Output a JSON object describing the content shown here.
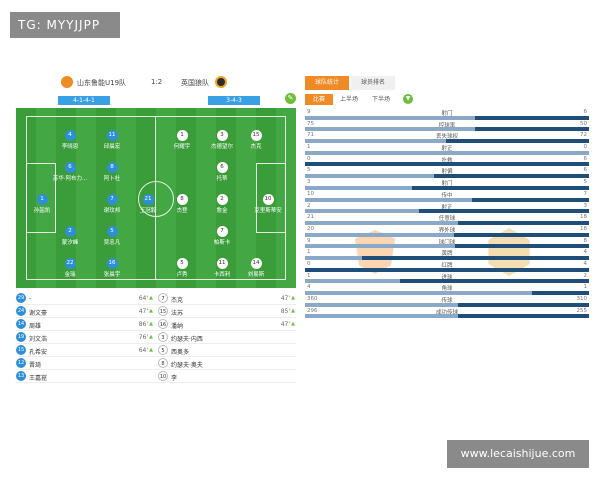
{
  "watermark_top": "TG: MYYJJPP",
  "watermark_bottom": "www.lecaishijue.com",
  "match": {
    "home": "山东鲁能U19队",
    "score": "1:2",
    "away": "英国狼队"
  },
  "formations": {
    "home": "4-1-4-1",
    "away": "3-4-3"
  },
  "icons": {
    "edit": "pencil-icon",
    "filter": "filter-icon"
  },
  "colors": {
    "accent": "#f08a24",
    "home": "#2f8fd6",
    "away_bar": "#1f4e79",
    "pitch": "#3a9d3a"
  },
  "players_home": [
    {
      "num": "1",
      "name": "孙韶凯"
    },
    {
      "num": "4",
      "name": "李晓恩"
    },
    {
      "num": "6",
      "name": "苏华·阿布力..."
    },
    {
      "num": "2",
      "name": "蒙汐峰"
    },
    {
      "num": "22",
      "name": "金瑞"
    },
    {
      "num": "11",
      "name": "邱晨宏"
    },
    {
      "num": "8",
      "name": "阿卜杜"
    },
    {
      "num": "7",
      "name": "谢玟邦"
    },
    {
      "num": "5",
      "name": "贾忠凡"
    },
    {
      "num": "16",
      "name": "张晨宇"
    },
    {
      "num": "21",
      "name": "王冠毅"
    }
  ],
  "players_away": [
    {
      "num": "1",
      "name": "何耀宇"
    },
    {
      "num": "3",
      "name": "杰德望尔"
    },
    {
      "num": "15",
      "name": "杰克"
    },
    {
      "num": "6",
      "name": "托蒂"
    },
    {
      "num": "8",
      "name": "杰登"
    },
    {
      "num": "10",
      "name": "克里斯蒂安"
    },
    {
      "num": "2",
      "name": "詹金"
    },
    {
      "num": "7",
      "name": "帕斯卡"
    },
    {
      "num": "5",
      "name": "卢秀"
    },
    {
      "num": "11",
      "name": "卡西利"
    },
    {
      "num": "14",
      "name": "刘易斯"
    }
  ],
  "subs_home": [
    {
      "num": "29",
      "name": "-",
      "min": "64'"
    },
    {
      "num": "24",
      "name": "谢文豪",
      "min": "47'"
    },
    {
      "num": "14",
      "name": "周雄",
      "min": "86'"
    },
    {
      "num": "19",
      "name": "刘文浩",
      "min": "76'"
    },
    {
      "num": "15",
      "name": "孔希安",
      "min": "64'"
    },
    {
      "num": "12",
      "name": "晋琦",
      "min": ""
    },
    {
      "num": "13",
      "name": "王嘉崑",
      "min": ""
    }
  ],
  "subs_away": [
    {
      "num": "7",
      "name": "杰克",
      "min": "47'"
    },
    {
      "num": "15",
      "name": "法苏",
      "min": "85'"
    },
    {
      "num": "16",
      "name": "潘纳",
      "min": "47'"
    },
    {
      "num": "3",
      "name": "约瑟夫·内西",
      "min": ""
    },
    {
      "num": "5",
      "name": "西奥多",
      "min": ""
    },
    {
      "num": "8",
      "name": "约瑟夫·奥夫",
      "min": ""
    },
    {
      "num": "10",
      "name": "李",
      "min": ""
    }
  ],
  "tabs": [
    "球队统计",
    "球员排名"
  ],
  "halves": [
    "比赛",
    "上半场",
    "下半场"
  ],
  "stats": [
    {
      "label": "射门",
      "home": "9",
      "away": "6"
    },
    {
      "label": "控球率",
      "home": "75",
      "away": "50"
    },
    {
      "label": "丢失球权",
      "home": "71",
      "away": "72"
    },
    {
      "label": "射正",
      "home": "1",
      "away": "0"
    },
    {
      "label": "扑救",
      "home": "0",
      "away": "6"
    },
    {
      "label": "射偏",
      "home": "5",
      "away": "6"
    },
    {
      "label": "射门",
      "home": "3",
      "away": "5"
    },
    {
      "label": "传中",
      "home": "10",
      "away": "7"
    },
    {
      "label": "射正",
      "home": "2",
      "away": "3"
    },
    {
      "label": "任意球",
      "home": "21",
      "away": "18"
    },
    {
      "label": "界外球",
      "home": "20",
      "away": "18"
    },
    {
      "label": "球门球",
      "home": "9",
      "away": "8"
    },
    {
      "label": "黄牌",
      "home": "1",
      "away": "4"
    },
    {
      "label": "红牌",
      "home": "0",
      "away": "4"
    },
    {
      "label": "进球",
      "home": "1",
      "away": "2"
    },
    {
      "label": "角球",
      "home": "4",
      "away": "1"
    },
    {
      "label": "传球",
      "home": "360",
      "away": "310"
    },
    {
      "label": "成功传球",
      "home": "296",
      "away": "255"
    }
  ]
}
